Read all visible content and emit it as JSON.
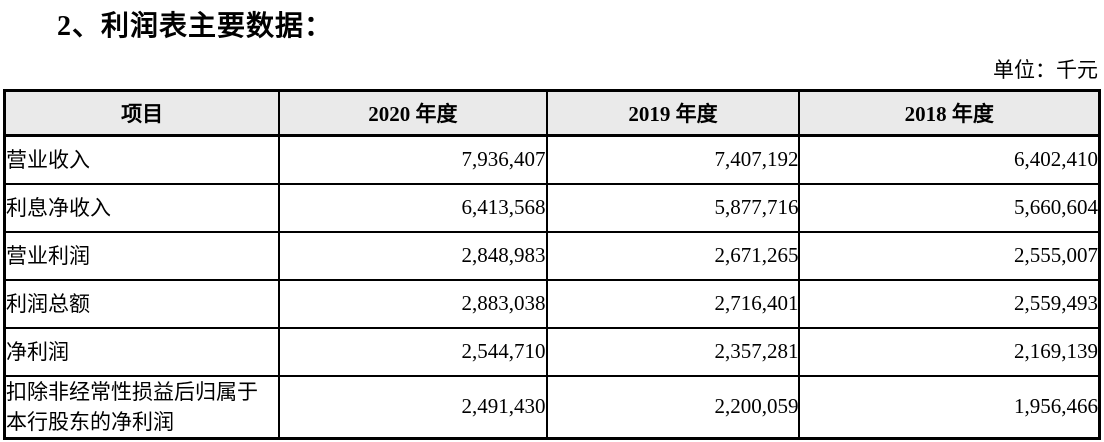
{
  "page": {
    "title": "2、利润表主要数据：",
    "unit_label": "单位：千元"
  },
  "table": {
    "columns": [
      "项目",
      "2020 年度",
      "2019 年度",
      "2018 年度"
    ],
    "rows": [
      {
        "item": "营业收入",
        "values": [
          "7,936,407",
          "7,407,192",
          "6,402,410"
        ]
      },
      {
        "item": "利息净收入",
        "values": [
          "6,413,568",
          "5,877,716",
          "5,660,604"
        ]
      },
      {
        "item": "营业利润",
        "values": [
          "2,848,983",
          "2,671,265",
          "2,555,007"
        ]
      },
      {
        "item": "利润总额",
        "values": [
          "2,883,038",
          "2,716,401",
          "2,559,493"
        ]
      },
      {
        "item": "净利润",
        "values": [
          "2,544,710",
          "2,357,281",
          "2,169,139"
        ]
      },
      {
        "item": "扣除非经常性损益后归属于本行股东的净利润",
        "values": [
          "2,491,430",
          "2,200,059",
          "1,956,466"
        ]
      }
    ]
  },
  "colors": {
    "background": "#ffffff",
    "text": "#000000",
    "border": "#000000",
    "header_bg": "#eaeaea"
  }
}
